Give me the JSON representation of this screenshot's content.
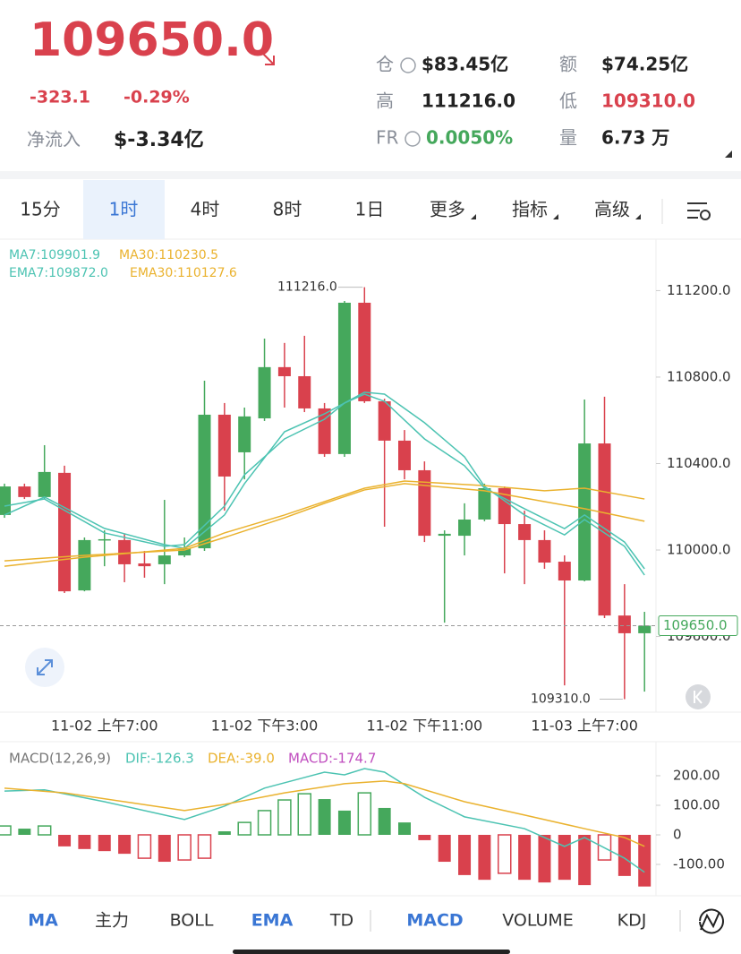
{
  "header": {
    "price": "109650.0",
    "change": "-323.1",
    "change_pct": "-0.29%",
    "net_flow_label": "净流入",
    "net_flow": "$-3.34亿",
    "stats": [
      [
        "仓",
        "$83.45亿"
      ],
      [
        "额",
        "$74.25亿"
      ],
      [
        "高",
        "111216.0"
      ],
      [
        "低",
        "109310.0"
      ],
      [
        "FR",
        "0.0050%"
      ],
      [
        "量",
        "6.73 万"
      ]
    ]
  },
  "tabs": [
    "15分",
    "1时",
    "4时",
    "8时",
    "1日",
    "更多",
    "指标",
    "高级"
  ],
  "active_tab": 1,
  "indicator_tabs": [
    "MA",
    "主力",
    "BOLL",
    "EMA",
    "TD",
    "MACD",
    "VOLUME",
    "KDJ"
  ],
  "active_indicators": [
    0,
    3,
    5
  ],
  "chart_data": [
    {
      "type": "candlestick",
      "categories": [
        null,
        null,
        null,
        null,
        null,
        "11-02 上午7:00",
        null,
        null,
        null,
        null,
        null,
        null,
        null,
        "11-02 下午3:00",
        null,
        null,
        null,
        null,
        null,
        null,
        null,
        "11-02 下午11:00",
        null,
        null,
        null,
        null,
        null,
        null,
        null,
        "11-03 上午7:00",
        null,
        null,
        null
      ],
      "open": [
        110162,
        110294,
        110245,
        110357,
        109813,
        110046,
        110046,
        109938,
        109934,
        109975,
        110008,
        110626,
        110452,
        110609,
        110846,
        110804,
        110655,
        110444,
        111144,
        110688,
        110506,
        110369,
        110066,
        110066,
        110141,
        110286,
        110120,
        110046,
        109946,
        109859,
        110493,
        109697,
        109615
      ],
      "high": [
        110307,
        110307,
        110485,
        110390,
        110058,
        110091,
        110075,
        109996,
        110232,
        110058,
        110783,
        110680,
        110659,
        110978,
        110958,
        110991,
        110680,
        111152,
        111216,
        110700,
        110555,
        110410,
        110091,
        110216,
        110307,
        110294,
        110182,
        110091,
        109975,
        110696,
        110709,
        109842,
        109714
      ],
      "low": [
        110149,
        110236,
        110236,
        109801,
        109809,
        109925,
        109851,
        109872,
        109842,
        109967,
        109996,
        110182,
        110327,
        110597,
        110659,
        110638,
        110431,
        110431,
        110680,
        110108,
        110327,
        110037,
        109664,
        109975,
        110133,
        109892,
        109842,
        109913,
        109374,
        109855,
        109685,
        109310,
        109345
      ],
      "close": [
        110294,
        110245,
        110361,
        109809,
        110046,
        110050,
        109934,
        109925,
        109975,
        110008,
        110626,
        110340,
        110618,
        110846,
        110804,
        110655,
        110444,
        111144,
        110688,
        110506,
        110369,
        110066,
        110075,
        110141,
        110286,
        110120,
        110046,
        109942,
        109859,
        110493,
        109697,
        109615,
        109650
      ],
      "up_color": "#45a85c",
      "down_color": "#d9414d",
      "ylim": [
        109250,
        111438
      ],
      "yticks": [
        {
          "value": 109600,
          "label": "109600.0"
        },
        {
          "value": 110000,
          "label": "110000.0"
        },
        {
          "value": 110400,
          "label": "110400.0"
        },
        {
          "value": 110800,
          "label": "110800.0"
        },
        {
          "value": 111200,
          "label": "111200.0"
        }
      ],
      "last_price": {
        "value": 109650.0,
        "label": "109650.0"
      },
      "max_label": {
        "value": 111216.0,
        "label": "111216.0",
        "index": 18
      },
      "min_label": {
        "value": 109310.0,
        "label": "109310.0",
        "index": 31
      },
      "series": [
        {
          "name": "MA7:109901.9",
          "color": "#4cc3b2",
          "x": [
            0,
            2,
            5,
            8,
            9,
            11,
            12,
            14,
            16,
            17,
            18,
            19,
            21,
            23,
            24,
            26,
            28,
            29,
            31,
            32
          ],
          "values": [
            110162,
            110245,
            110100,
            110025,
            110008,
            110162,
            110307,
            110547,
            110630,
            110680,
            110730,
            110721,
            110589,
            110431,
            110294,
            110162,
            110070,
            110141,
            110017,
            109884
          ]
        },
        {
          "name": "MA30:110230.5",
          "color": "#eab22e",
          "x": [
            0,
            4,
            9,
            11,
            14,
            16,
            18,
            20,
            24,
            27,
            29,
            32
          ],
          "values": [
            109925,
            109967,
            110008,
            110079,
            110162,
            110224,
            110286,
            110319,
            110298,
            110274,
            110286,
            110236
          ]
        },
        {
          "name": "EMA7:109872.0",
          "color": "#4cc3b2",
          "x": [
            0,
            2,
            5,
            8,
            9,
            11,
            12,
            14,
            16,
            17,
            18,
            19,
            21,
            23,
            24,
            26,
            28,
            29,
            31,
            32
          ],
          "values": [
            110203,
            110236,
            110079,
            110017,
            110025,
            110203,
            110348,
            110514,
            110605,
            110680,
            110721,
            110688,
            110514,
            110390,
            110286,
            110191,
            110099,
            110162,
            110037,
            109913
          ]
        },
        {
          "name": "EMA30:110127.6",
          "color": "#eab22e",
          "x": [
            0,
            4,
            9,
            11,
            14,
            16,
            18,
            20,
            24,
            27,
            29,
            32
          ],
          "values": [
            109950,
            109975,
            110000,
            110058,
            110149,
            110216,
            110278,
            110307,
            110274,
            110224,
            110191,
            110133
          ]
        }
      ]
    },
    {
      "type": "macd",
      "title": "MACD(12,26,9)",
      "values": [
        30,
        21,
        30,
        -39,
        -48,
        -55,
        -64,
        -79,
        -91,
        -85,
        -79,
        12,
        42,
        82,
        118,
        139,
        121,
        82,
        142,
        91,
        42,
        -18,
        -91,
        -136,
        -152,
        -130,
        -152,
        -161,
        -152,
        -170,
        -85,
        -139,
        -174.7
      ],
      "hollow": [
        true,
        false,
        true,
        false,
        false,
        false,
        false,
        true,
        false,
        true,
        true,
        false,
        true,
        true,
        true,
        true,
        false,
        false,
        true,
        false,
        false,
        false,
        false,
        false,
        false,
        true,
        false,
        false,
        false,
        false,
        true,
        false,
        false
      ],
      "hist_name": "MACD:-174.7",
      "hist_name_color": "#c04dbf",
      "up_color": "#45a85c",
      "down_color": "#d9414d",
      "ylim": [
        -206,
        315
      ],
      "yticks": [
        {
          "value": -100,
          "label": "-100.00"
        },
        {
          "value": 0,
          "label": "0"
        },
        {
          "value": 100,
          "label": "100.00"
        },
        {
          "value": 200,
          "label": "200.00"
        }
      ],
      "series": [
        {
          "name": "DIF:-126.3",
          "color": "#4cc3b2",
          "x": [
            0,
            2,
            5,
            8,
            9,
            11,
            13,
            15,
            16,
            17,
            18,
            19,
            21,
            23,
            26,
            28,
            29,
            31,
            32
          ],
          "values": [
            148,
            152,
            112,
            67,
            52,
            97,
            158,
            194,
            212,
            203,
            224,
            212,
            127,
            61,
            21,
            -39,
            -9,
            -79,
            -126.3
          ]
        },
        {
          "name": "DEA:-39.0",
          "color": "#eab22e",
          "x": [
            0,
            3,
            6,
            9,
            11,
            14,
            17,
            19,
            20,
            23,
            26,
            29,
            31,
            32
          ],
          "values": [
            158,
            142,
            112,
            82,
            103,
            142,
            173,
            182,
            173,
            112,
            67,
            21,
            -9,
            -39.0
          ]
        }
      ]
    }
  ]
}
